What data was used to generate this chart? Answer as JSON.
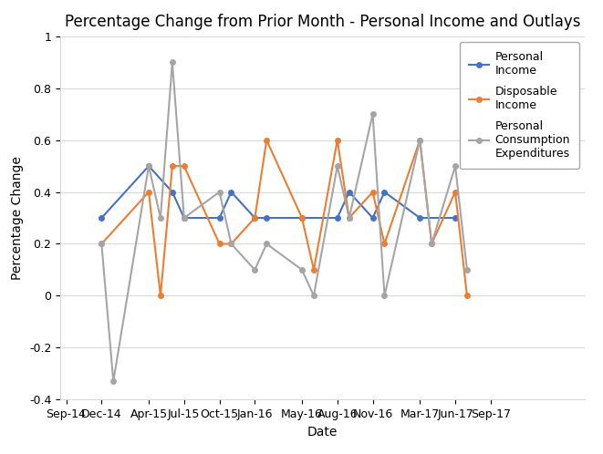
{
  "title": "Percentage Change from Prior Month - Personal Income and Outlays",
  "xlabel": "Date",
  "ylabel": "Percentage Change",
  "xlim_labels": [
    "Sep-14",
    "Dec-14",
    "Apr-15",
    "Jul-15",
    "Oct-15",
    "Jan-16",
    "May-16",
    "Aug-16",
    "Nov-16",
    "Mar-17",
    "Jun-17",
    "Sep-17"
  ],
  "x_positions": [
    0,
    3,
    7,
    10,
    13,
    16,
    20,
    23,
    26,
    30,
    33,
    36
  ],
  "ylim": [
    -0.4,
    1.0
  ],
  "yticks": [
    -0.4,
    -0.2,
    0,
    0.2,
    0.4,
    0.6,
    0.8,
    1.0
  ],
  "personal_income": {
    "x": [
      3,
      7,
      9,
      10,
      13,
      14,
      16,
      17,
      20,
      23,
      24,
      26,
      27,
      30,
      33
    ],
    "y": [
      0.3,
      0.5,
      0.4,
      0.3,
      0.3,
      0.4,
      0.3,
      0.3,
      0.3,
      0.3,
      0.4,
      0.3,
      0.4,
      0.3,
      0.3
    ],
    "color": "#4472c4",
    "label": "Personal\nIncome"
  },
  "disposable_income": {
    "x": [
      3,
      7,
      8,
      9,
      10,
      13,
      14,
      16,
      17,
      20,
      21,
      23,
      24,
      26,
      27,
      30,
      31,
      33,
      34
    ],
    "y": [
      0.2,
      0.4,
      0.0,
      0.5,
      0.5,
      0.2,
      0.2,
      0.3,
      0.6,
      0.3,
      0.1,
      0.6,
      0.3,
      0.4,
      0.2,
      0.6,
      0.2,
      0.4,
      0.0
    ],
    "color": "#ed7d31",
    "label": "Disposable\nIncome"
  },
  "pce": {
    "x": [
      3,
      4,
      7,
      8,
      9,
      10,
      13,
      14,
      16,
      17,
      20,
      21,
      23,
      24,
      26,
      27,
      30,
      31,
      33,
      34
    ],
    "y": [
      0.2,
      -0.33,
      0.5,
      0.3,
      0.9,
      0.3,
      0.4,
      0.2,
      0.1,
      0.2,
      0.1,
      0.0,
      0.5,
      0.3,
      0.7,
      0.0,
      0.6,
      0.2,
      0.5,
      0.1
    ],
    "color": "#a5a5a5",
    "label": "Personal\nConsumption\nExpenditures"
  },
  "background_color": "#ffffff",
  "grid_color": "#d9d9d9",
  "title_fontsize": 12,
  "axis_label_fontsize": 10,
  "tick_fontsize": 9,
  "legend_fontsize": 9
}
